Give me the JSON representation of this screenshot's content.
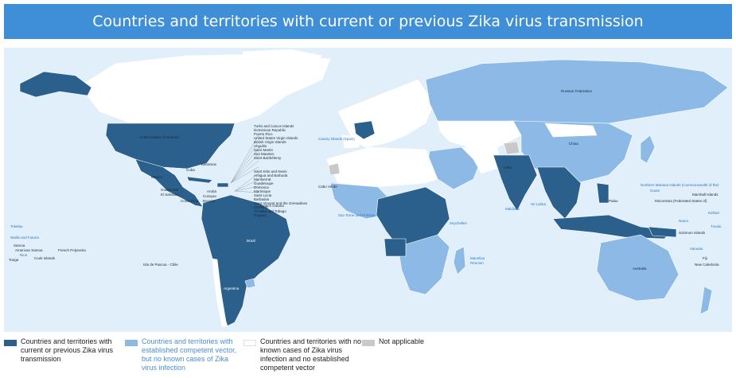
{
  "title": "Countries and territories with current or previous Zika virus transmission",
  "colors": {
    "current": "#2b5f8c",
    "vector": "#8cb9e6",
    "none": "#ffffff",
    "na": "#c9c9c9",
    "ocean": "#e1effa",
    "title_bg": "#3f8fd8"
  },
  "legend": [
    {
      "key": "current",
      "color": "#2b5f8c",
      "text": "Countries and territories with current or previous Zika virus transmission"
    },
    {
      "key": "vector",
      "color": "#8cb9e6",
      "text": "Countries and territories with established competent vector, but no known cases of Zika virus infection"
    },
    {
      "key": "none",
      "color": "#ffffff",
      "text": "Countries and territories with no known cases of Zika virus infection and no established competent vector"
    },
    {
      "key": "na",
      "color": "#c9c9c9",
      "text": "Not applicable"
    }
  ],
  "labels": {
    "usa": "United States of America",
    "russia": "Russian Federation",
    "china": "China",
    "india": "India",
    "brazil": "Brazil",
    "australia": "Australia",
    "argentina": "Argentina",
    "mexico": "Mexico",
    "canary": "Canary Islands (Spain)",
    "cabo_verde": "Cabo Verde",
    "sao_tome": "Sao Tome and Principe",
    "seychelles": "Seychelles",
    "maldives": "Maldives",
    "sri_lanka": "Sri Lanka",
    "mauritius": "Mauritius",
    "reunion": "Réunion",
    "tokelau": "Tokelau",
    "wallis": "Wallis and Futuna",
    "samoa": "Samoa",
    "american_samoa": "American Samoa",
    "tonga": "Tonga",
    "niue": "Niue",
    "cook": "Cook Islands",
    "french_polynesia": "French Polynesia",
    "palau": "Palau",
    "micronesia": "Micronesia (Federated States of)",
    "marshall": "Marshall Islands",
    "kiribati": "Kiribati",
    "nauru": "Nauru",
    "tuvalu": "Tuvalu",
    "fiji": "Fiji",
    "vanuatu": "Vanuatu",
    "solomon": "Solomon Islands",
    "new_caledonia": "New Caledonia",
    "guam": "Guam",
    "n_mariana": "Northern Mariana Islands (Commonwealth of the)",
    "bahamas": "Bahamas",
    "cuba": "Cuba",
    "guatemala": "Guatemala",
    "el_salvador": "El Salvador",
    "costa_rica": "Costa Rica",
    "aruba": "Aruba",
    "curacao": "Curaçao",
    "bonaire": "Bonaire",
    "french_guiana": "French Guiana",
    "easter": "Isla de Pascua - Chile",
    "caribbean_group1": [
      "Turks and Caicos Islands",
      "Dominican Republic",
      "Puerto Rico",
      "United States Virgin Islands",
      "British Virgin Islands",
      "Anguilla",
      "Saint Martin",
      "Sint Maarten",
      "Saint Barthélemy"
    ],
    "caribbean_group2": [
      "Saint Kitts and Nevis",
      "Antigua and Barbuda",
      "Montserrat",
      "Guadeloupe",
      "Dominica",
      "Martinique",
      "Saint Lucia",
      "Barbados",
      "Saint Vincent and the Grenadines",
      "Grenada",
      "Trinidad and Tobago",
      "Guyana"
    ]
  }
}
